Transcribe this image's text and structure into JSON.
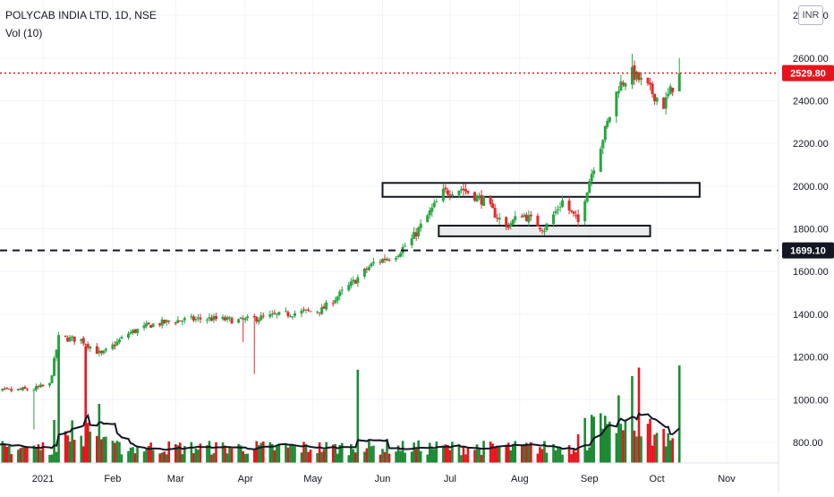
{
  "header": {
    "symbol_line": "POLYCAB INDIA LTD, 1D, NSE",
    "volume_line": "Vol (10)",
    "currency": "INR"
  },
  "price_axis": {
    "ticks": [
      "2800.00",
      "2600.00",
      "2400.00",
      "2200.00",
      "2000.00",
      "1800.00",
      "1600.00",
      "1400.00",
      "1200.00",
      "1000.00",
      "800.00"
    ]
  },
  "time_axis": {
    "ticks": [
      "2021",
      "Feb",
      "Mar",
      "Apr",
      "May",
      "Jun",
      "Jul",
      "Aug",
      "Sep",
      "Oct",
      "Nov"
    ]
  },
  "colors": {
    "up": "#26a641",
    "down": "#e02b2b",
    "up_volume": "#1e8a35",
    "down_volume": "#e8141c",
    "last_price_badge": "#e8141c",
    "level_line_badge": "#131722",
    "ma_line": "#131722"
  },
  "chart_data": {
    "type": "candlestick",
    "title": "POLYCAB INDIA LTD, 1D, NSE",
    "ylim": [
      720,
      2830
    ],
    "grid": true,
    "last_price": {
      "value": 2529.8,
      "label": "2529.80"
    },
    "horizontal_level": {
      "value": 1699.1,
      "label": "1699.10",
      "style": "dashed"
    },
    "zones": [
      {
        "from": "Jun 01 2021",
        "to": "Oct 20 2021",
        "low": 1950,
        "high": 2015
      },
      {
        "from": "Jun 26 2021",
        "to": "Sep 28 2021",
        "low": 1765,
        "high": 1815
      }
    ],
    "price_anchors": [
      {
        "date": "Dec 07 2020",
        "close": 1030
      },
      {
        "date": "Dec 14 2020",
        "close": 1040
      },
      {
        "date": "Dec 21 2020",
        "close": 1045
      },
      {
        "date": "Dec 28 2020",
        "close": 1050
      },
      {
        "date": "Jan 04 2021",
        "close": 1070
      },
      {
        "date": "Jan 08 2021",
        "close": 1290
      },
      {
        "date": "Jan 18 2021",
        "close": 1280
      },
      {
        "date": "Jan 27 2021",
        "close": 1210
      },
      {
        "date": "Feb 08 2021",
        "close": 1310
      },
      {
        "date": "Feb 18 2021",
        "close": 1350
      },
      {
        "date": "Mar 01 2021",
        "close": 1370
      },
      {
        "date": "Mar 15 2021",
        "close": 1380
      },
      {
        "date": "Mar 30 2021",
        "close": 1370
      },
      {
        "date": "Apr 12 2021",
        "close": 1390
      },
      {
        "date": "Apr 26 2021",
        "close": 1410
      },
      {
        "date": "May 05 2021",
        "close": 1420
      },
      {
        "date": "May 17 2021",
        "close": 1530
      },
      {
        "date": "May 28 2021",
        "close": 1640
      },
      {
        "date": "Jun 07 2021",
        "close": 1680
      },
      {
        "date": "Jun 14 2021",
        "close": 1750
      },
      {
        "date": "Jun 28 2021",
        "close": 1970
      },
      {
        "date": "Jul 06 2021",
        "close": 1990
      },
      {
        "date": "Jul 16 2021",
        "close": 1930
      },
      {
        "date": "Jul 26 2021",
        "close": 1810
      },
      {
        "date": "Aug 02 2021",
        "close": 1870
      },
      {
        "date": "Aug 12 2021",
        "close": 1800
      },
      {
        "date": "Aug 20 2021",
        "close": 1930
      },
      {
        "date": "Aug 27 2021",
        "close": 1830
      },
      {
        "date": "Sep 01 2021",
        "close": 2030
      },
      {
        "date": "Sep 08 2021",
        "close": 2260
      },
      {
        "date": "Sep 14 2021",
        "close": 2470
      },
      {
        "date": "Sep 20 2021",
        "close": 2530
      },
      {
        "date": "Sep 27 2021",
        "close": 2460
      },
      {
        "date": "Oct 04 2021",
        "close": 2380
      },
      {
        "date": "Oct 11 2021",
        "close": 2529.8
      }
    ],
    "volume": {
      "ma_length": 10,
      "ylim_display": [
        720,
        1180
      ],
      "spikes": [
        {
          "date": "Jan 08 2021",
          "value": 1300
        },
        {
          "date": "Jan 20 2021",
          "value": 1250
        },
        {
          "date": "Jan 26 2021",
          "value": 980
        },
        {
          "date": "May 21 2021",
          "value": 1140
        },
        {
          "date": "Sep 14 2021",
          "value": 1020
        },
        {
          "date": "Sep 20 2021",
          "value": 1110
        },
        {
          "date": "Sep 23 2021",
          "value": 1150
        },
        {
          "date": "Oct 11 2021",
          "value": 1160
        }
      ]
    }
  }
}
